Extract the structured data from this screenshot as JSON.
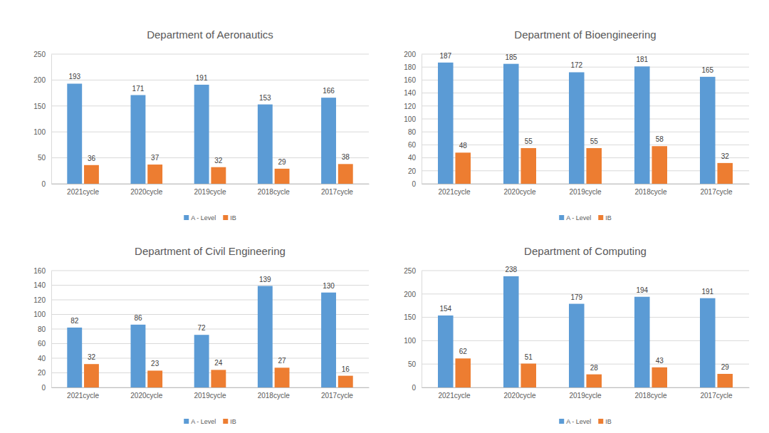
{
  "chart_data": [
    {
      "type": "bar",
      "title": "Department of Aeronautics",
      "categories": [
        "2021cycle",
        "2020cycle",
        "2019cycle",
        "2018cycle",
        "2017cycle"
      ],
      "series": [
        {
          "name": "A - Level",
          "color": "#5b9bd5",
          "values": [
            193,
            171,
            191,
            153,
            166
          ]
        },
        {
          "name": "IB",
          "color": "#ed7d31",
          "values": [
            36,
            37,
            32,
            29,
            38
          ]
        }
      ],
      "ylim": [
        0,
        250
      ],
      "yticks": [
        0,
        50,
        100,
        150,
        200,
        250
      ],
      "grid": true,
      "legend": "bottom",
      "data_labels": true
    },
    {
      "type": "bar",
      "title": "Department of Bioengineering",
      "categories": [
        "2021cycle",
        "2020cycle",
        "2019cycle",
        "2018cycle",
        "2017cycle"
      ],
      "series": [
        {
          "name": "A - Level",
          "color": "#5b9bd5",
          "values": [
            187,
            185,
            172,
            181,
            165
          ]
        },
        {
          "name": "IB",
          "color": "#ed7d31",
          "values": [
            48,
            55,
            55,
            58,
            32
          ]
        }
      ],
      "ylim": [
        0,
        200
      ],
      "yticks": [
        0,
        20,
        40,
        60,
        80,
        100,
        120,
        140,
        160,
        180,
        200
      ],
      "grid": true,
      "legend": "bottom",
      "data_labels": true
    },
    {
      "type": "bar",
      "title": "Department of Civil Engineering",
      "categories": [
        "2021cycle",
        "2020cycle",
        "2019cycle",
        "2018cycle",
        "2017cycle"
      ],
      "series": [
        {
          "name": "A - Level",
          "color": "#5b9bd5",
          "values": [
            82,
            86,
            72,
            139,
            130
          ]
        },
        {
          "name": "IB",
          "color": "#ed7d31",
          "values": [
            32,
            23,
            24,
            27,
            16
          ]
        }
      ],
      "ylim": [
        0,
        160
      ],
      "yticks": [
        0,
        20,
        40,
        60,
        80,
        100,
        120,
        140,
        160
      ],
      "grid": true,
      "legend": "bottom",
      "data_labels": true
    },
    {
      "type": "bar",
      "title": "Department of Computing",
      "categories": [
        "2021cycle",
        "2020cycle",
        "2019cycle",
        "2018cycle",
        "2017cycle"
      ],
      "series": [
        {
          "name": "A - Level",
          "color": "#5b9bd5",
          "values": [
            154,
            238,
            179,
            194,
            191
          ]
        },
        {
          "name": "IB",
          "color": "#ed7d31",
          "values": [
            62,
            51,
            28,
            43,
            29
          ]
        }
      ],
      "ylim": [
        0,
        250
      ],
      "yticks": [
        0,
        50,
        100,
        150,
        200,
        250
      ],
      "grid": true,
      "legend": "bottom",
      "data_labels": true
    }
  ]
}
